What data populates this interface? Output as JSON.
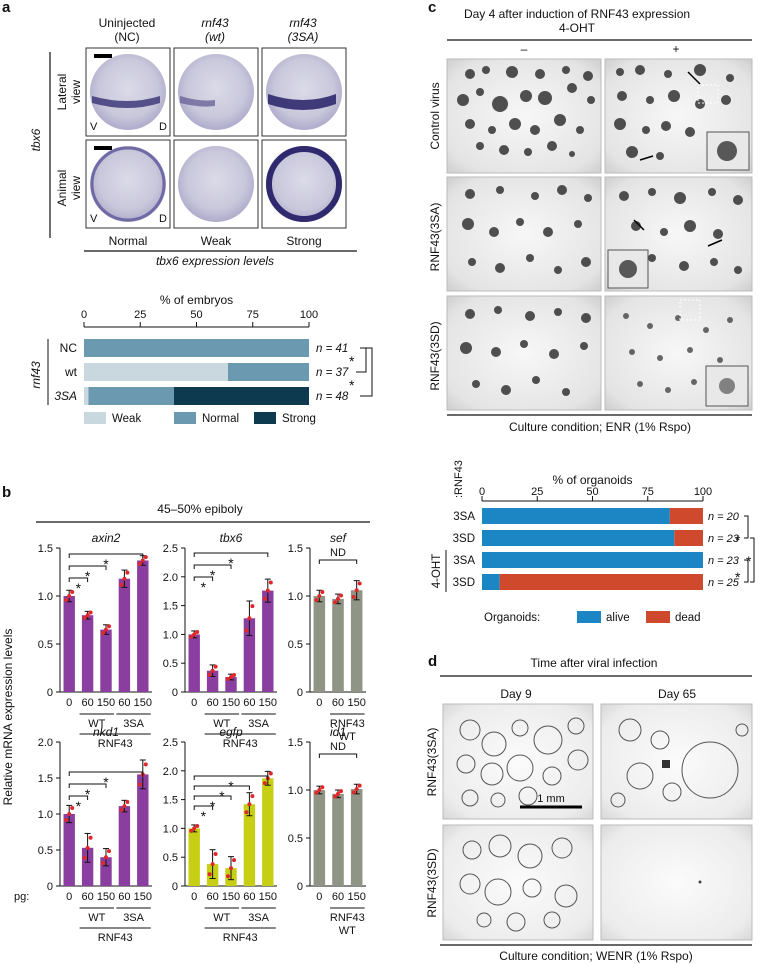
{
  "colors": {
    "purple": "#8a3fa0",
    "yellow": "#c6cf14",
    "grey": "#8f9484",
    "weak": "#c9d7de",
    "normal": "#6b9ab0",
    "strong": "#0e3a4f",
    "alive": "#1b86c3",
    "dead": "#cf4a2c",
    "dot": "#e0282b",
    "embryo": "#8a86b4"
  },
  "panel_a": {
    "label": "a",
    "cols": [
      "Uninjected",
      "(NC)",
      "rnf43",
      "(wt)",
      "rnf43",
      "(3SA)"
    ],
    "gene": "tbx6",
    "rows": [
      "Lateral",
      "view",
      "Animal",
      "view"
    ],
    "v": "V",
    "d": "D",
    "levels": [
      "Normal",
      "Weak",
      "Strong"
    ],
    "levels_title": "tbx6 expression levels",
    "chart_data": {
      "type": "bar",
      "orientation": "horizontal-stacked",
      "title": "% of embryos",
      "group_label": "rnf43",
      "categories": [
        "NC",
        "wt",
        "3SA"
      ],
      "n_labels": [
        "n = 41",
        "n = 37",
        "n = 48"
      ],
      "xlim": [
        0,
        100
      ],
      "ticks": [
        "0",
        "25",
        "50",
        "75",
        "100"
      ],
      "series": [
        {
          "name": "Weak",
          "values": [
            0,
            64,
            2
          ]
        },
        {
          "name": "Normal",
          "values": [
            100,
            36,
            38
          ]
        },
        {
          "name": "Strong",
          "values": [
            0,
            0,
            60
          ]
        }
      ],
      "sig": "*"
    }
  },
  "panel_b": {
    "label": "b",
    "title": "45–50% epiboly",
    "ylabel": "Relative mRNA expression levels",
    "pg": "pg:",
    "x_ticks": [
      "0",
      "60",
      "150",
      "60",
      "150"
    ],
    "x_ticks_short": [
      "0",
      "60",
      "150"
    ],
    "wt": "WT",
    "sa": "3SA",
    "rnf43": "RNF43",
    "rnf43_wt": [
      "RNF43",
      "WT"
    ],
    "nd": "ND",
    "star": "*",
    "chart_data": [
      {
        "type": "bar",
        "gene": "axin2",
        "categories": [
          "0",
          "60",
          "150",
          "60",
          "150"
        ],
        "values": [
          1.0,
          0.8,
          0.65,
          1.18,
          1.37
        ],
        "errors": [
          0.06,
          0.04,
          0.05,
          0.09,
          0.05
        ],
        "ylim": [
          0,
          1.5
        ],
        "ticks": [
          "0",
          "0.5",
          "1.0",
          "1.5"
        ]
      },
      {
        "type": "bar",
        "gene": "tbx6",
        "categories": [
          "0",
          "60",
          "150",
          "60",
          "150"
        ],
        "values": [
          1.0,
          0.37,
          0.26,
          1.28,
          1.76
        ],
        "errors": [
          0.06,
          0.1,
          0.05,
          0.3,
          0.2
        ],
        "ylim": [
          0,
          2.5
        ],
        "ticks": [
          "0",
          "0.5",
          "1.0",
          "1.5",
          "2.0",
          "2.5"
        ]
      },
      {
        "type": "bar",
        "gene": "sef",
        "categories": [
          "0",
          "60",
          "150"
        ],
        "values": [
          1.0,
          0.97,
          1.06
        ],
        "errors": [
          0.06,
          0.05,
          0.1
        ],
        "ylim": [
          0,
          1.5
        ],
        "ticks": [
          "0",
          "0.5",
          "1.0",
          "1.5"
        ]
      },
      {
        "type": "bar",
        "gene": "nkd1",
        "categories": [
          "0",
          "60",
          "150",
          "60",
          "150"
        ],
        "values": [
          1.0,
          0.53,
          0.4,
          1.11,
          1.55
        ],
        "errors": [
          0.12,
          0.2,
          0.12,
          0.08,
          0.2
        ],
        "ylim": [
          0,
          2.0
        ],
        "ticks": [
          "0",
          "0.5",
          "1.0",
          "1.5",
          "2.0"
        ]
      },
      {
        "type": "bar",
        "gene": "egfp",
        "categories": [
          "0",
          "60",
          "150",
          "60",
          "150"
        ],
        "values": [
          1.0,
          0.38,
          0.31,
          1.42,
          1.87
        ],
        "errors": [
          0.06,
          0.25,
          0.2,
          0.2,
          0.12
        ],
        "ylim": [
          0,
          2.5
        ],
        "ticks": [
          "0",
          "0.5",
          "1.0",
          "1.5",
          "2.0",
          "2.5"
        ]
      },
      {
        "type": "bar",
        "gene": "id1",
        "categories": [
          "0",
          "60",
          "150"
        ],
        "values": [
          1.0,
          0.96,
          1.01
        ],
        "errors": [
          0.04,
          0.04,
          0.05
        ],
        "ylim": [
          0,
          1.5
        ],
        "ticks": [
          "0",
          "0.5",
          "1.0",
          "1.5"
        ]
      }
    ]
  },
  "panel_c": {
    "label": "c",
    "title": "Day 4 after induction of  RNF43 expression",
    "subtitle": "4-OHT",
    "minus": "–",
    "plus": "+",
    "rows": [
      "Control virus",
      "RNF43(3SA)",
      "RNF43(3SD)"
    ],
    "culture": "Culture condition; ENR (1% Rspo)",
    "chart_data": {
      "type": "bar",
      "orientation": "horizontal-stacked",
      "title": "% of organoids",
      "corner": ":RNF43",
      "group_label": "4-OHT",
      "categories": [
        "3SA",
        "3SD",
        "3SA",
        "3SD"
      ],
      "n_labels": [
        "n = 20",
        "n = 23",
        "n = 23",
        "n = 25"
      ],
      "xlim": [
        0,
        100
      ],
      "ticks": [
        "0",
        "25",
        "50",
        "75",
        "100"
      ],
      "series": [
        {
          "name": "alive",
          "values": [
            85,
            87,
            100,
            8
          ]
        },
        {
          "name": "dead",
          "values": [
            15,
            13,
            0,
            92
          ]
        }
      ],
      "legend_title": "Organoids:",
      "sig": "*"
    }
  },
  "panel_d": {
    "label": "d",
    "title": "Time after viral infection",
    "cols": [
      "Day 9",
      "Day 65"
    ],
    "rows": [
      "RNF43(3SA)",
      "RNF43(3SD)"
    ],
    "scale": "1 mm",
    "culture": "Culture condition; WENR (1% Rspo)"
  }
}
